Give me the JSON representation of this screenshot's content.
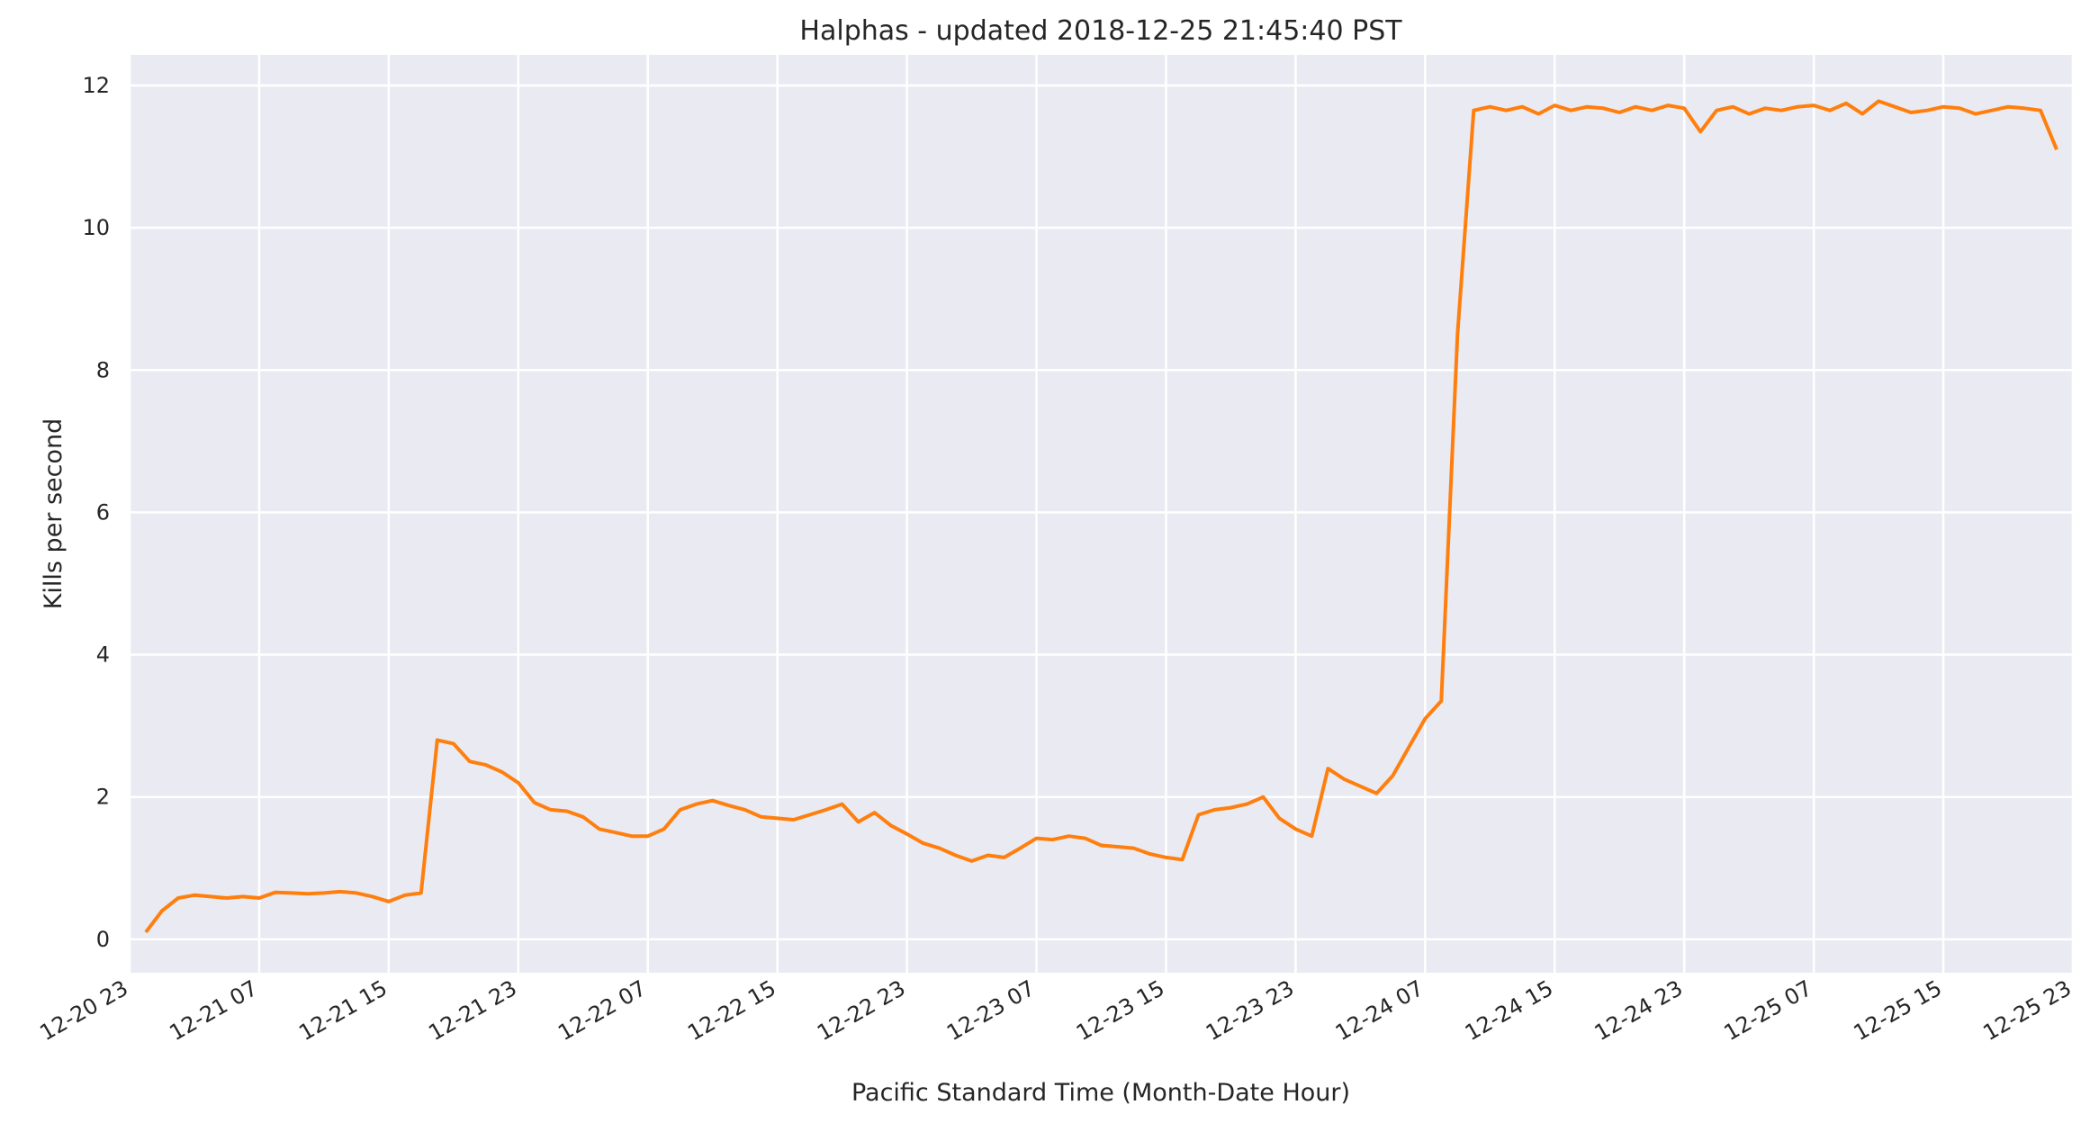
{
  "chart_data": {
    "type": "line",
    "title": "Halphas - updated 2018-12-25 21:45:40 PST",
    "x_label": "Pacific Standard Time (Month-Date Hour)",
    "y_label": "Kills per second",
    "x": [
      "12-21 00",
      "12-21 01",
      "12-21 02",
      "12-21 03",
      "12-21 04",
      "12-21 05",
      "12-21 06",
      "12-21 07",
      "12-21 08",
      "12-21 09",
      "12-21 10",
      "12-21 11",
      "12-21 12",
      "12-21 13",
      "12-21 14",
      "12-21 15",
      "12-21 16",
      "12-21 17",
      "12-21 18",
      "12-21 19",
      "12-21 20",
      "12-21 21",
      "12-21 22",
      "12-21 23",
      "12-22 00",
      "12-22 01",
      "12-22 02",
      "12-22 03",
      "12-22 04",
      "12-22 05",
      "12-22 06",
      "12-22 07",
      "12-22 08",
      "12-22 09",
      "12-22 10",
      "12-22 11",
      "12-22 12",
      "12-22 13",
      "12-22 14",
      "12-22 15",
      "12-22 16",
      "12-22 17",
      "12-22 18",
      "12-22 19",
      "12-22 20",
      "12-22 21",
      "12-22 22",
      "12-22 23",
      "12-23 00",
      "12-23 01",
      "12-23 02",
      "12-23 03",
      "12-23 04",
      "12-23 05",
      "12-23 06",
      "12-23 07",
      "12-23 08",
      "12-23 09",
      "12-23 10",
      "12-23 11",
      "12-23 12",
      "12-23 13",
      "12-23 14",
      "12-23 15",
      "12-23 16",
      "12-23 17",
      "12-23 18",
      "12-23 19",
      "12-23 20",
      "12-23 21",
      "12-23 22",
      "12-23 23",
      "12-24 00",
      "12-24 01",
      "12-24 02",
      "12-24 03",
      "12-24 04",
      "12-24 05",
      "12-24 06",
      "12-24 07",
      "12-24 08",
      "12-24 09",
      "12-24 10",
      "12-24 11",
      "12-24 12",
      "12-24 13",
      "12-24 14",
      "12-24 15",
      "12-24 16",
      "12-24 17",
      "12-24 18",
      "12-24 19",
      "12-24 20",
      "12-24 21",
      "12-24 22",
      "12-24 23",
      "12-25 00",
      "12-25 01",
      "12-25 02",
      "12-25 03",
      "12-25 04",
      "12-25 05",
      "12-25 06",
      "12-25 07",
      "12-25 08",
      "12-25 09",
      "12-25 10",
      "12-25 11",
      "12-25 12",
      "12-25 13",
      "12-25 14",
      "12-25 15",
      "12-25 16",
      "12-25 17",
      "12-25 18",
      "12-25 19",
      "12-25 20",
      "12-25 21",
      "12-25 22"
    ],
    "values": [
      0.1,
      0.4,
      0.58,
      0.62,
      0.6,
      0.58,
      0.6,
      0.58,
      0.66,
      0.65,
      0.64,
      0.65,
      0.67,
      0.65,
      0.6,
      0.53,
      0.62,
      0.65,
      2.8,
      2.75,
      2.5,
      2.45,
      2.35,
      2.2,
      1.92,
      1.82,
      1.8,
      1.72,
      1.55,
      1.5,
      1.45,
      1.45,
      1.55,
      1.82,
      1.9,
      1.95,
      1.88,
      1.82,
      1.72,
      1.7,
      1.68,
      1.75,
      1.82,
      1.9,
      1.65,
      1.78,
      1.6,
      1.48,
      1.35,
      1.28,
      1.18,
      1.1,
      1.18,
      1.15,
      1.28,
      1.42,
      1.4,
      1.45,
      1.42,
      1.32,
      1.3,
      1.28,
      1.2,
      1.15,
      1.12,
      1.75,
      1.82,
      1.85,
      1.9,
      2.0,
      1.7,
      1.55,
      1.45,
      2.4,
      2.25,
      2.15,
      2.05,
      2.3,
      2.7,
      3.1,
      3.35,
      8.5,
      11.65,
      11.7,
      11.65,
      11.7,
      11.6,
      11.72,
      11.65,
      11.7,
      11.68,
      11.62,
      11.7,
      11.65,
      11.72,
      11.68,
      11.35,
      11.65,
      11.7,
      11.6,
      11.68,
      11.65,
      11.7,
      11.72,
      11.65,
      11.75,
      11.6,
      11.78,
      11.7,
      11.62,
      11.65,
      11.7,
      11.68,
      11.6,
      11.65,
      11.7,
      11.68,
      11.65,
      11.1
    ],
    "color": "#ff7f0e",
    "xlim": [
      "12-20 23",
      "12-25 23"
    ],
    "xticks": [
      "12-20 23",
      "12-21 07",
      "12-21 15",
      "12-21 23",
      "12-22 07",
      "12-22 15",
      "12-22 23",
      "12-23 07",
      "12-23 15",
      "12-23 23",
      "12-24 07",
      "12-24 15",
      "12-24 23",
      "12-25 07",
      "12-25 15",
      "12-25 23"
    ],
    "ylim": [
      -0.47,
      12.43
    ],
    "yticks": [
      0,
      2,
      4,
      6,
      8,
      10,
      12
    ],
    "grid": true
  }
}
